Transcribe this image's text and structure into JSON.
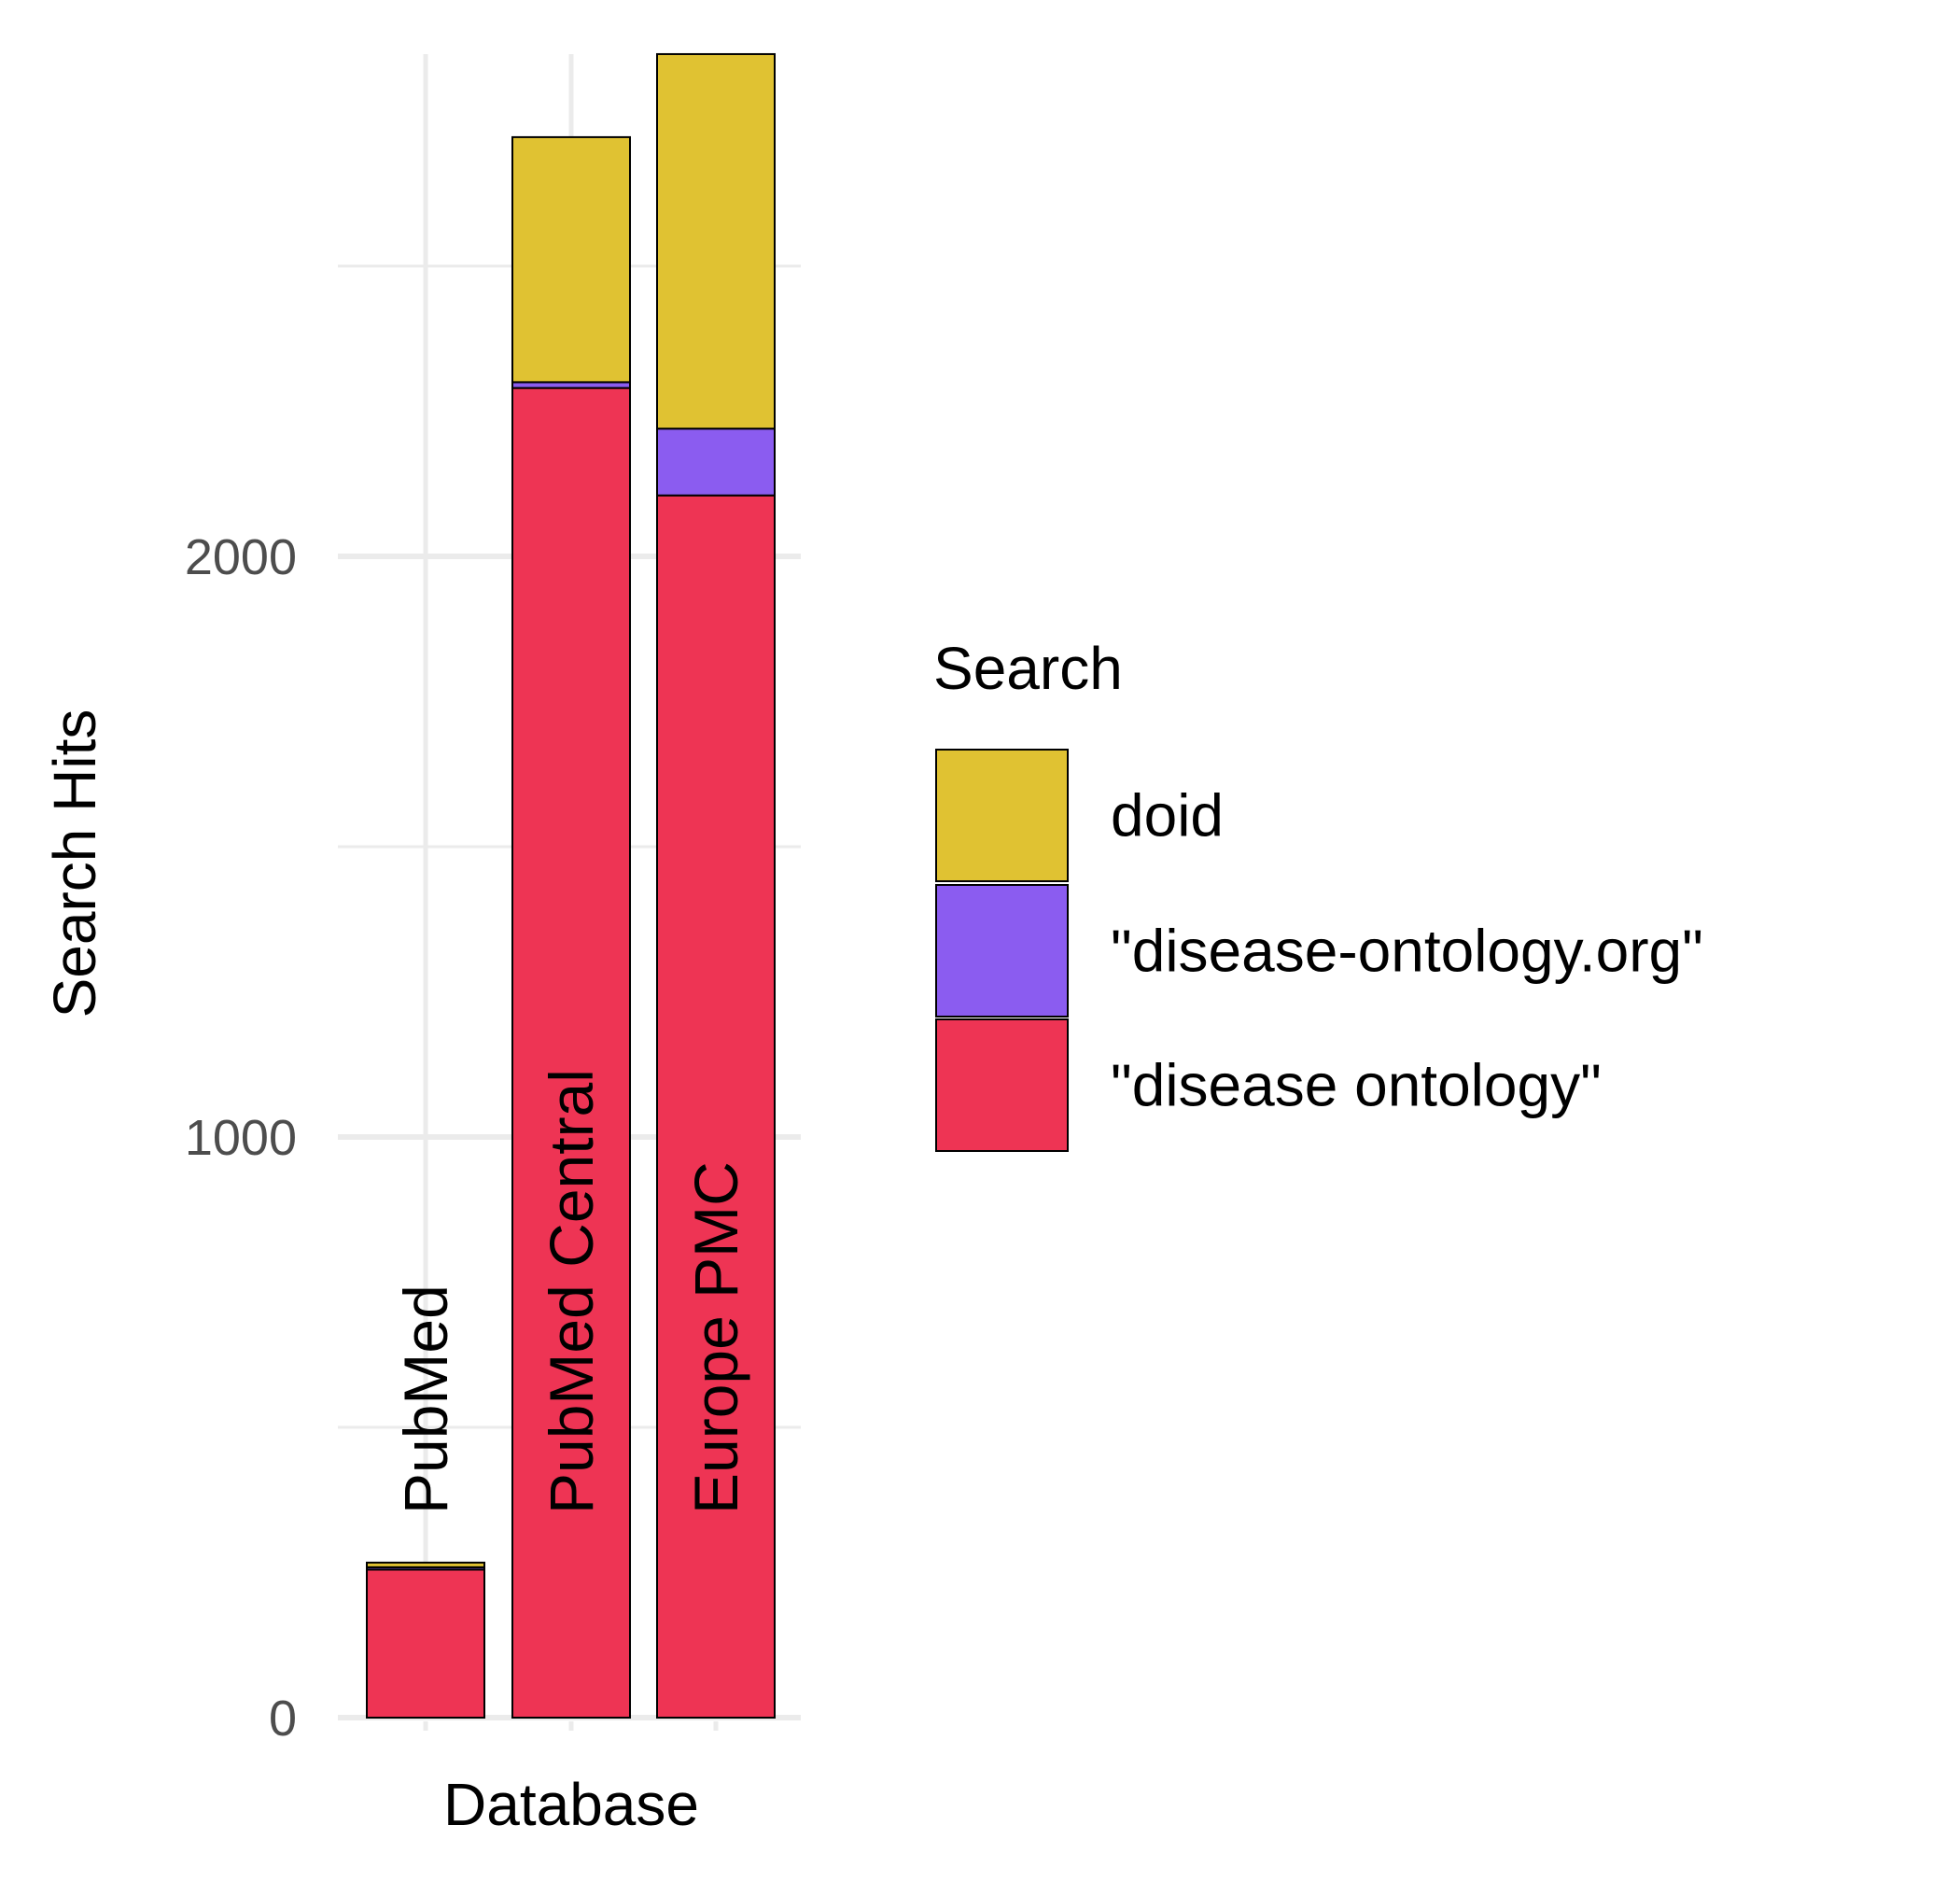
{
  "chart_data": {
    "type": "bar",
    "stacked": true,
    "categories": [
      "PubMed",
      "PubMed Central",
      "Europe PMC"
    ],
    "series": [
      {
        "name": "\"disease ontology\"",
        "color": "#EE3454",
        "values": [
          255,
          2290,
          2105
        ]
      },
      {
        "name": "\"disease-ontology.org\"",
        "color": "#8B5CF0",
        "values": [
          4,
          10,
          115
        ]
      },
      {
        "name": "doid",
        "color": "#E0C232",
        "values": [
          8,
          422,
          645
        ]
      }
    ],
    "xlabel": "Database",
    "ylabel": "Search Hits",
    "yticks": [
      0,
      1000,
      2000
    ],
    "yminor": [
      500,
      1500,
      2500
    ],
    "ylim": [
      0,
      2865
    ],
    "grid": true,
    "legend": {
      "title": "Search",
      "placement": "right",
      "order": [
        "doid",
        "\"disease-ontology.org\"",
        "\"disease ontology\""
      ]
    },
    "bar_labels": "category names drawn vertically inside/above bars",
    "bar_outline_color": "#000000",
    "grid_color": "#EBEBEB",
    "tick_label_color": "#4D4D4D"
  }
}
